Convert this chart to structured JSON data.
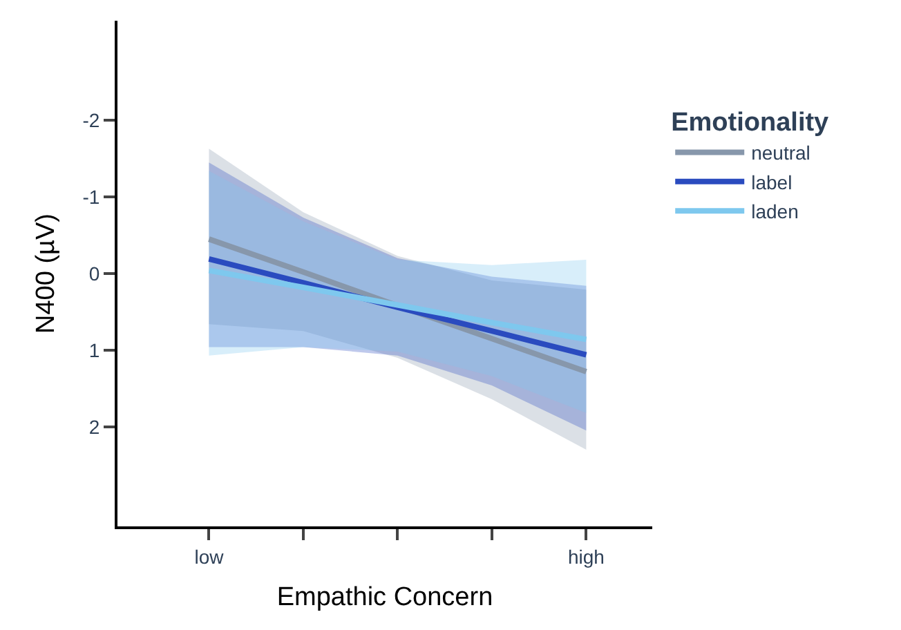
{
  "chart_data": {
    "type": "line",
    "xlabel": "Empathic Concern",
    "ylabel": "N400 (µV)",
    "legend_title": "Emotionality",
    "categories": [
      "low",
      null,
      null,
      null,
      "high"
    ],
    "ylim": [
      3.3,
      -3.3
    ],
    "yticks": [
      -2,
      -1,
      0,
      1,
      2
    ],
    "legend": "right",
    "marker": "none",
    "line_style": "solid",
    "series": [
      {
        "name": "neutral",
        "color": "#8797ab",
        "values": [
          -0.45,
          -0.02,
          0.42,
          0.85,
          1.28
        ],
        "lower": [
          0.66,
          0.75,
          1.1,
          1.64,
          2.3
        ],
        "upper": [
          -1.63,
          -0.8,
          -0.23,
          0.09,
          0.21
        ]
      },
      {
        "name": "label",
        "color": "#2a4bbf",
        "values": [
          -0.19,
          0.12,
          0.44,
          0.75,
          1.06
        ],
        "lower": [
          0.96,
          0.96,
          1.07,
          1.46,
          2.05
        ],
        "upper": [
          -1.45,
          -0.73,
          -0.2,
          0.04,
          0.16
        ]
      },
      {
        "name": "laden",
        "color": "#7ec8ee",
        "values": [
          -0.04,
          0.18,
          0.41,
          0.64,
          0.86
        ],
        "lower": [
          1.07,
          0.96,
          1.02,
          1.34,
          1.82
        ],
        "upper": [
          -1.34,
          -0.68,
          -0.18,
          -0.11,
          -0.18
        ]
      }
    ]
  }
}
